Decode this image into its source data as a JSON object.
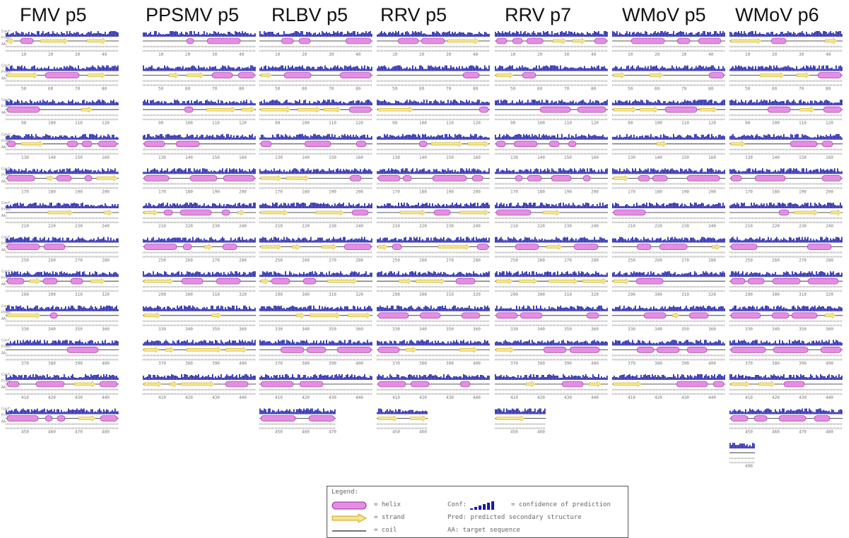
{
  "colors": {
    "helix": "#e58de3",
    "helix_stroke": "#9a2f98",
    "strand": "#f7e48a",
    "strand_stroke": "#c7a52a",
    "confidence": "#1a1aa8",
    "coil": "#222222",
    "text": "#777777"
  },
  "panels": [
    {
      "title": "FMV p5",
      "ticks": [
        "10",
        "20",
        "30",
        "40",
        "50",
        "60",
        "70",
        "80",
        "90",
        "100",
        "110",
        "120",
        "130",
        "140",
        "150",
        "160",
        "170",
        "180",
        "190",
        "200",
        "210",
        "220",
        "230",
        "240",
        "250",
        "260",
        "270",
        "280",
        "290",
        "300",
        "310",
        "320",
        "330",
        "340",
        "350",
        "360",
        "370",
        "380",
        "390",
        "400",
        "410",
        "420",
        "430",
        "440",
        "450",
        "460",
        "470",
        "480"
      ]
    },
    {
      "title": "PPSMV p5",
      "ticks": [
        "10",
        "20",
        "30",
        "40",
        "50",
        "60",
        "70",
        "80",
        "90",
        "100",
        "110",
        "120",
        "130",
        "140",
        "150",
        "160",
        "170",
        "180",
        "190",
        "200",
        "210",
        "220",
        "230",
        "240",
        "250",
        "260",
        "270",
        "280",
        "290",
        "300",
        "310",
        "320",
        "330",
        "340",
        "350",
        "360",
        "370",
        "380",
        "390",
        "400",
        "410",
        "420",
        "430",
        "440"
      ]
    },
    {
      "title": "RLBV p5",
      "ticks": [
        "10",
        "20",
        "30",
        "40",
        "50",
        "60",
        "70",
        "80",
        "90",
        "100",
        "110",
        "120",
        "130",
        "140",
        "150",
        "160",
        "170",
        "180",
        "190",
        "200",
        "210",
        "220",
        "230",
        "240",
        "250",
        "260",
        "270",
        "280",
        "290",
        "300",
        "310",
        "320",
        "330",
        "340",
        "350",
        "360",
        "370",
        "380",
        "390",
        "400",
        "410",
        "420",
        "430",
        "440",
        "450",
        "460",
        "470"
      ]
    },
    {
      "title": "RRV p5",
      "ticks": [
        "10",
        "20",
        "30",
        "40",
        "50",
        "60",
        "70",
        "80",
        "90",
        "100",
        "110",
        "120",
        "130",
        "140",
        "150",
        "160",
        "170",
        "180",
        "190",
        "200",
        "210",
        "220",
        "230",
        "240",
        "250",
        "260",
        "270",
        "280",
        "290",
        "300",
        "310",
        "320",
        "330",
        "340",
        "350",
        "360",
        "370",
        "380",
        "390",
        "400",
        "410",
        "420",
        "430",
        "440",
        "450",
        "460"
      ]
    },
    {
      "title": "RRV p7",
      "ticks": [
        "10",
        "20",
        "30",
        "40",
        "50",
        "60",
        "70",
        "80",
        "90",
        "100",
        "110",
        "120",
        "130",
        "140",
        "150",
        "160",
        "170",
        "180",
        "190",
        "200",
        "210",
        "220",
        "230",
        "240",
        "250",
        "260",
        "270",
        "280",
        "290",
        "300",
        "310",
        "320",
        "330",
        "340",
        "350",
        "360",
        "370",
        "380",
        "390",
        "400",
        "410",
        "420",
        "430",
        "440",
        "450",
        "460"
      ]
    },
    {
      "title": "WMoV p5",
      "ticks": [
        "10",
        "20",
        "30",
        "40",
        "50",
        "60",
        "70",
        "80",
        "90",
        "100",
        "110",
        "120",
        "130",
        "140",
        "150",
        "160",
        "170",
        "180",
        "190",
        "200",
        "210",
        "220",
        "230",
        "240",
        "250",
        "260",
        "270",
        "280",
        "290",
        "300",
        "310",
        "320",
        "330",
        "340",
        "350",
        "360",
        "370",
        "380",
        "390",
        "400",
        "410",
        "420",
        "430",
        "440"
      ]
    },
    {
      "title": "WMoV p6",
      "ticks": [
        "10",
        "20",
        "30",
        "40",
        "50",
        "60",
        "70",
        "80",
        "90",
        "100",
        "110",
        "120",
        "130",
        "140",
        "150",
        "160",
        "170",
        "180",
        "190",
        "200",
        "210",
        "220",
        "230",
        "240",
        "250",
        "260",
        "270",
        "280",
        "290",
        "300",
        "310",
        "320",
        "330",
        "340",
        "350",
        "360",
        "370",
        "380",
        "390",
        "400",
        "410",
        "420",
        "430",
        "440",
        "450",
        "460",
        "470",
        "480",
        "490"
      ]
    }
  ],
  "row_labels": {
    "conf": "Conf:",
    "pred": "Pred:",
    "aa": "AA:"
  },
  "legend": {
    "title": "Legend:",
    "helix": "= helix",
    "strand": "= strand",
    "coil": "= coil",
    "conf_label": "Conf:",
    "conf_desc": "= confidence of prediction",
    "pred_desc": "Pred: predicted secondary structure",
    "aa_desc": "AA: target sequence"
  }
}
